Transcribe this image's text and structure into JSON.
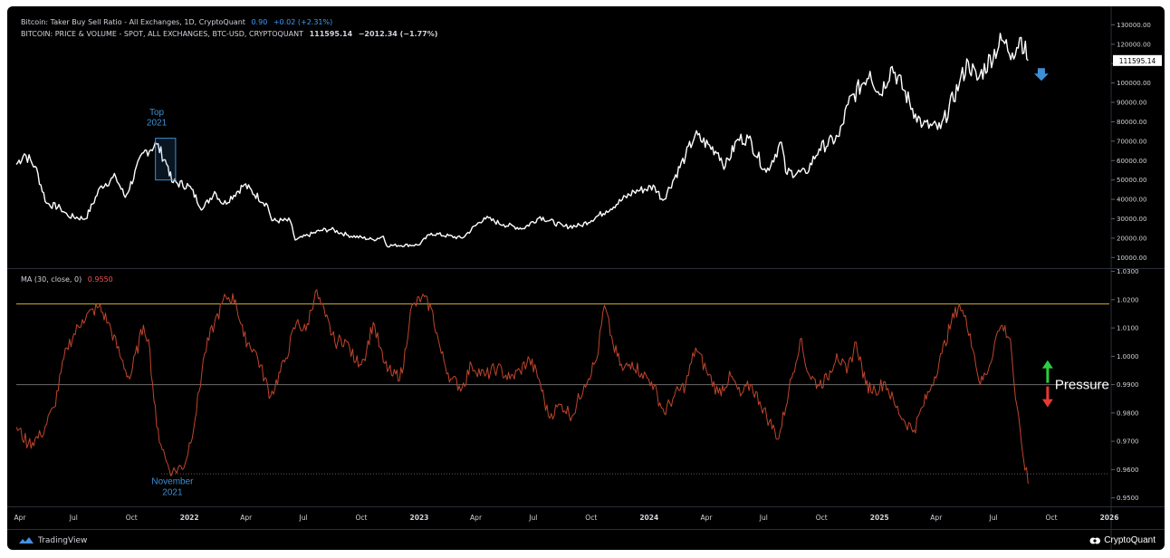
{
  "header": {
    "line1_label": "Bitcoin: Taker Buy Sell Ratio - All Exchanges, 1D, CryptoQuant",
    "line1_value": "0.90",
    "line1_change": "+0.02 (+2.31%)",
    "line2_label": "BITCOIN: PRICE & VOLUME - SPOT, ALL EXCHANGES, BTC-USD, CRYPTOQUANT",
    "line2_value": "111595.14",
    "line2_change": "−2012.34 (−1.77%)",
    "ma_label": "MA (30, close, 0)",
    "ma_value": "0.9550"
  },
  "footer": {
    "left_brand": "TradingView",
    "right_brand": "CryptoQuant"
  },
  "annotations": {
    "top_2021_line1": "Top",
    "top_2021_line2": "2021",
    "nov_2021_line1": "November",
    "nov_2021_line2": "2021",
    "pressure": "Pressure",
    "price_badge": "111595.14"
  },
  "colors": {
    "price_line": "#ffffff",
    "ma_line": "#c0452c",
    "upper_level": "#c4a636",
    "mid_level": "#6b6b6b",
    "annotation_blue": "#3d8fd6",
    "arrow_up": "#2ecc40",
    "arrow_down": "#e53935",
    "down_arrow_blue": "#3d8fd6"
  },
  "icons": [
    "tradingview-logo-icon",
    "cryptoquant-logo-icon",
    "down-arrow-icon",
    "pressure-up-arrow-icon",
    "pressure-down-arrow-icon"
  ],
  "chart_data": [
    {
      "type": "line",
      "title": "BITCOIN: PRICE & VOLUME - SPOT, ALL EXCHANGES, BTC-USD, CRYPTOQUANT",
      "x_ticks": [
        "Apr",
        "Jul",
        "Oct",
        "2022",
        "Apr",
        "Jul",
        "Oct",
        "2023",
        "Apr",
        "Jul",
        "Oct",
        "2024",
        "Apr",
        "Jul",
        "Oct",
        "2025",
        "Apr",
        "Jul",
        "Oct",
        "2026"
      ],
      "y_ticks": [
        "130000.00",
        "120000.00",
        "110000.00",
        "100000.00",
        "90000.00",
        "80000.00",
        "70000.00",
        "60000.00",
        "50000.00",
        "40000.00",
        "30000.00",
        "20000.00",
        "10000.00"
      ],
      "ylim": [
        5000,
        133000
      ],
      "x_range": [
        "2021-04-01",
        "2026-01-01"
      ],
      "series": [
        {
          "name": "BTC-USD",
          "points": [
            [
              "2021-04-01",
              58000
            ],
            [
              "2021-04-14",
              63500
            ],
            [
              "2021-05-01",
              57000
            ],
            [
              "2021-05-19",
              38000
            ],
            [
              "2021-06-10",
              35500
            ],
            [
              "2021-06-22",
              31500
            ],
            [
              "2021-07-20",
              30000
            ],
            [
              "2021-08-14",
              47000
            ],
            [
              "2021-09-06",
              51500
            ],
            [
              "2021-09-21",
              41000
            ],
            [
              "2021-10-20",
              64000
            ],
            [
              "2021-11-10",
              68500
            ],
            [
              "2021-11-28",
              57000
            ],
            [
              "2021-12-04",
              49000
            ],
            [
              "2021-12-31",
              47000
            ],
            [
              "2022-01-22",
              35000
            ],
            [
              "2022-02-10",
              44000
            ],
            [
              "2022-02-24",
              37500
            ],
            [
              "2022-03-29",
              47500
            ],
            [
              "2022-05-05",
              37000
            ],
            [
              "2022-05-12",
              29000
            ],
            [
              "2022-06-10",
              29000
            ],
            [
              "2022-06-18",
              19000
            ],
            [
              "2022-07-29",
              24000
            ],
            [
              "2022-08-14",
              24500
            ],
            [
              "2022-09-10",
              21500
            ],
            [
              "2022-10-20",
              19200
            ],
            [
              "2022-11-05",
              21000
            ],
            [
              "2022-11-10",
              16200
            ],
            [
              "2022-12-31",
              16500
            ],
            [
              "2023-01-20",
              22500
            ],
            [
              "2023-03-10",
              20000
            ],
            [
              "2023-04-14",
              30500
            ],
            [
              "2023-05-15",
              27000
            ],
            [
              "2023-06-15",
              25000
            ],
            [
              "2023-07-12",
              31000
            ],
            [
              "2023-08-18",
              26000
            ],
            [
              "2023-09-15",
              26500
            ],
            [
              "2023-10-25",
              34000
            ],
            [
              "2023-12-08",
              44000
            ],
            [
              "2024-01-10",
              46500
            ],
            [
              "2024-01-23",
              39500
            ],
            [
              "2024-02-28",
              62500
            ],
            [
              "2024-03-14",
              73000
            ],
            [
              "2024-04-20",
              64000
            ],
            [
              "2024-05-01",
              57000
            ],
            [
              "2024-05-21",
              71000
            ],
            [
              "2024-06-07",
              71500
            ],
            [
              "2024-07-05",
              54000
            ],
            [
              "2024-07-29",
              69500
            ],
            [
              "2024-08-05",
              54000
            ],
            [
              "2024-09-06",
              53500
            ],
            [
              "2024-09-27",
              66000
            ],
            [
              "2024-10-29",
              72500
            ],
            [
              "2024-11-12",
              89000
            ],
            [
              "2024-12-17",
              106000
            ],
            [
              "2025-01-01",
              94000
            ],
            [
              "2025-01-21",
              108500
            ],
            [
              "2025-02-27",
              84000
            ],
            [
              "2025-03-11",
              78500
            ],
            [
              "2025-04-08",
              76500
            ],
            [
              "2025-05-08",
              100000
            ],
            [
              "2025-05-22",
              111000
            ],
            [
              "2025-06-05",
              101500
            ],
            [
              "2025-07-14",
              122000
            ],
            [
              "2025-07-31",
              115500
            ],
            [
              "2025-08-14",
              123500
            ],
            [
              "2025-08-25",
              111595.14
            ]
          ]
        }
      ]
    },
    {
      "type": "line",
      "title": "MA (30, close, 0)",
      "x_ticks": [
        "Apr",
        "Jul",
        "Oct",
        "2022",
        "Apr",
        "Jul",
        "Oct",
        "2023",
        "Apr",
        "Jul",
        "Oct",
        "2024",
        "Apr",
        "Jul",
        "Oct",
        "2025",
        "Apr",
        "Jul",
        "Oct",
        "2026"
      ],
      "y_ticks": [
        "1.0300",
        "1.0200",
        "1.0100",
        "1.0000",
        "0.9900",
        "0.9800",
        "0.9700",
        "0.9600",
        "0.9500"
      ],
      "ylim": [
        0.947,
        1.0305
      ],
      "x_range": [
        "2021-04-01",
        "2026-01-01"
      ],
      "reference_lines": [
        1.0185,
        0.99,
        0.9585
      ],
      "series": [
        {
          "name": "MA (30, close, 0)",
          "points": [
            [
              "2021-04-01",
              0.975
            ],
            [
              "2021-04-20",
              0.969
            ],
            [
              "2021-05-10",
              0.972
            ],
            [
              "2021-05-31",
              0.982
            ],
            [
              "2021-06-20",
              1.003
            ],
            [
              "2021-07-15",
              1.013
            ],
            [
              "2021-08-10",
              1.0175
            ],
            [
              "2021-08-25",
              1.012
            ],
            [
              "2021-09-15",
              0.999
            ],
            [
              "2021-09-28",
              0.992
            ],
            [
              "2021-10-20",
              1.011
            ],
            [
              "2021-10-28",
              1.006
            ],
            [
              "2021-11-10",
              0.975
            ],
            [
              "2021-11-25",
              0.963
            ],
            [
              "2021-12-05",
              0.959
            ],
            [
              "2021-12-25",
              0.962
            ],
            [
              "2022-01-10",
              0.978
            ],
            [
              "2022-01-25",
              1.001
            ],
            [
              "2022-02-10",
              1.012
            ],
            [
              "2022-02-28",
              1.021
            ],
            [
              "2022-03-15",
              1.02
            ],
            [
              "2022-03-28",
              1.007
            ],
            [
              "2022-04-15",
              1.002
            ],
            [
              "2022-05-10",
              0.986
            ],
            [
              "2022-06-01",
              0.998
            ],
            [
              "2022-06-20",
              1.012
            ],
            [
              "2022-07-05",
              1.009
            ],
            [
              "2022-07-20",
              1.023
            ],
            [
              "2022-08-05",
              1.014
            ],
            [
              "2022-08-20",
              1.005
            ],
            [
              "2022-09-05",
              1.006
            ],
            [
              "2022-09-22",
              0.998
            ],
            [
              "2022-10-05",
              0.999
            ],
            [
              "2022-10-20",
              1.012
            ],
            [
              "2022-11-05",
              0.998
            ],
            [
              "2022-11-20",
              0.993
            ],
            [
              "2022-12-05",
              0.994
            ],
            [
              "2022-12-18",
              1.016
            ],
            [
              "2023-01-05",
              1.021
            ],
            [
              "2023-01-20",
              1.017
            ],
            [
              "2023-02-05",
              1.001
            ],
            [
              "2023-02-20",
              0.992
            ],
            [
              "2023-03-10",
              0.989
            ],
            [
              "2023-03-25",
              0.997
            ],
            [
              "2023-04-15",
              0.993
            ],
            [
              "2023-05-05",
              0.996
            ],
            [
              "2023-05-25",
              0.992
            ],
            [
              "2023-06-10",
              0.995
            ],
            [
              "2023-06-25",
              0.999
            ],
            [
              "2023-07-10",
              0.992
            ],
            [
              "2023-07-25",
              0.979
            ],
            [
              "2023-08-15",
              0.983
            ],
            [
              "2023-09-01",
              0.979
            ],
            [
              "2023-09-20",
              0.99
            ],
            [
              "2023-10-10",
              0.999
            ],
            [
              "2023-10-22",
              1.018
            ],
            [
              "2023-11-05",
              1.004
            ],
            [
              "2023-11-20",
              0.995
            ],
            [
              "2023-12-05",
              0.998
            ],
            [
              "2023-12-20",
              0.994
            ],
            [
              "2024-01-05",
              0.991
            ],
            [
              "2024-01-25",
              0.98
            ],
            [
              "2024-02-10",
              0.986
            ],
            [
              "2024-02-28",
              0.99
            ],
            [
              "2024-03-15",
              1.003
            ],
            [
              "2024-04-01",
              0.995
            ],
            [
              "2024-04-20",
              0.987
            ],
            [
              "2024-05-10",
              0.993
            ],
            [
              "2024-05-25",
              0.986
            ],
            [
              "2024-06-10",
              0.99
            ],
            [
              "2024-06-25",
              0.984
            ],
            [
              "2024-07-10",
              0.977
            ],
            [
              "2024-07-25",
              0.971
            ],
            [
              "2024-08-10",
              0.988
            ],
            [
              "2024-08-28",
              1.006
            ],
            [
              "2024-09-10",
              0.994
            ],
            [
              "2024-09-25",
              0.99
            ],
            [
              "2024-10-10",
              0.992
            ],
            [
              "2024-10-25",
              1.001
            ],
            [
              "2024-11-10",
              0.994
            ],
            [
              "2024-11-25",
              1.005
            ],
            [
              "2024-12-10",
              0.99
            ],
            [
              "2024-12-25",
              0.988
            ],
            [
              "2025-01-10",
              0.991
            ],
            [
              "2025-01-25",
              0.983
            ],
            [
              "2025-02-10",
              0.977
            ],
            [
              "2025-02-25",
              0.974
            ],
            [
              "2025-03-10",
              0.982
            ],
            [
              "2025-03-25",
              0.99
            ],
            [
              "2025-04-10",
              1.001
            ],
            [
              "2025-04-25",
              1.012
            ],
            [
              "2025-05-08",
              1.0185
            ],
            [
              "2025-05-25",
              1.008
            ],
            [
              "2025-06-10",
              0.99
            ],
            [
              "2025-06-25",
              0.997
            ],
            [
              "2025-07-05",
              1.007
            ],
            [
              "2025-07-15",
              1.011
            ],
            [
              "2025-07-28",
              1.006
            ],
            [
              "2025-08-05",
              0.985
            ],
            [
              "2025-08-15",
              0.968
            ],
            [
              "2025-08-25",
              0.955
            ]
          ]
        }
      ]
    }
  ]
}
